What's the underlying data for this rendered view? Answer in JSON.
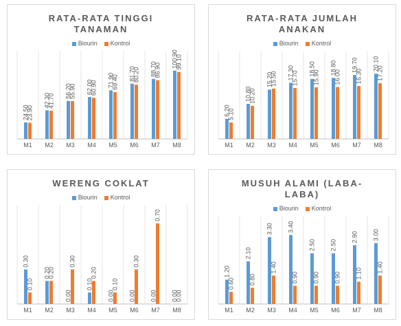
{
  "chart_data": [
    {
      "type": "bar",
      "title": "RATA-RATA TINGGI TANAMAN",
      "categories": [
        "M1",
        "M2",
        "M3",
        "M4",
        "M5",
        "M6",
        "M7",
        "M8"
      ],
      "series": [
        {
          "name": "Biourin",
          "color": "#5b9bd5",
          "values": [
            24.5,
            42.3,
            56.2,
            62.0,
            71.9,
            81.7,
            88.7,
            100.9
          ],
          "value_labels": [
            "24.50",
            "42.30",
            "56.20",
            "62.00",
            "71.90",
            "81.70",
            "88.70",
            "100.90"
          ]
        },
        {
          "name": "Kontrol",
          "color": "#ed7d31",
          "values": [
            23.9,
            41.7,
            55.9,
            60.9,
            69.4,
            80.2,
            86.9,
            99.1
          ],
          "value_labels": [
            "23.90",
            "41.70",
            "55.90",
            "60.90",
            "69.40",
            "80.20",
            "86.90",
            "99.10"
          ]
        }
      ],
      "ylim": [
        0,
        120
      ],
      "grid": true
    },
    {
      "type": "bar",
      "title": "RATA-RATA JUMLAH ANAKAN",
      "categories": [
        "M1",
        "M2",
        "M3",
        "M4",
        "M5",
        "M6",
        "M7",
        "M8"
      ],
      "series": [
        {
          "name": "Biourin",
          "color": "#5b9bd5",
          "values": [
            6.2,
            10.8,
            15.2,
            17.3,
            18.5,
            18.8,
            19.7,
            20.1
          ],
          "value_labels": [
            "6.20",
            "10.80",
            "15.20",
            "17.30",
            "18.50",
            "18.80",
            "19.70",
            "20.10"
          ]
        },
        {
          "name": "Kontrol",
          "color": "#ed7d31",
          "values": [
            5.1,
            10.2,
            15.5,
            15.7,
            15.9,
            16.0,
            16.3,
            17.2
          ],
          "value_labels": [
            "5.10",
            "10.20",
            "15.50",
            "15.70",
            "15.90",
            "16.00",
            "16.30",
            "17.20"
          ]
        }
      ],
      "ylim": [
        0,
        25
      ],
      "grid": true
    },
    {
      "type": "bar",
      "title": "WERENG COKLAT",
      "categories": [
        "M1",
        "M2",
        "M3",
        "M4",
        "M5",
        "M6",
        "M7",
        "M8"
      ],
      "series": [
        {
          "name": "Biourin",
          "color": "#5b9bd5",
          "values": [
            0.3,
            0.2,
            0,
            0.1,
            0,
            0,
            0,
            0
          ],
          "value_labels": [
            "0.30",
            "0.20",
            "0.00",
            "0.10",
            "0.00",
            "0.00",
            "0.00",
            "0.00"
          ]
        },
        {
          "name": "Kontrol",
          "color": "#ed7d31",
          "values": [
            0.1,
            0.2,
            0.3,
            0.2,
            0.1,
            0.3,
            0.7,
            0
          ],
          "value_labels": [
            "0.10",
            "0.20",
            "0.30",
            "0.20",
            "0.10",
            "0.30",
            "0.70",
            "0.00"
          ]
        }
      ],
      "ylim": [
        0,
        0.8
      ],
      "grid": true
    },
    {
      "type": "bar",
      "title": "MUSUH ALAMI (LABA-LABA)",
      "categories": [
        "M1",
        "M2",
        "M3",
        "M4",
        "M5",
        "M6",
        "M7",
        "M8"
      ],
      "series": [
        {
          "name": "Biourin",
          "color": "#5b9bd5",
          "values": [
            1.2,
            2.1,
            3.3,
            3.4,
            2.5,
            2.5,
            2.9,
            3.0
          ],
          "value_labels": [
            "1.20",
            "2.10",
            "3.30",
            "3.40",
            "2.50",
            "2.50",
            "2.90",
            "3.00"
          ]
        },
        {
          "name": "Kontrol",
          "color": "#ed7d31",
          "values": [
            0.6,
            0.8,
            1.4,
            0.9,
            0.9,
            0.9,
            1.1,
            1.4
          ],
          "value_labels": [
            "0.60",
            "0.80",
            "1.40",
            "0.90",
            "0.90",
            "0.90",
            "1.10",
            "1.40"
          ]
        }
      ],
      "ylim": [
        0,
        4
      ],
      "grid": true
    }
  ]
}
